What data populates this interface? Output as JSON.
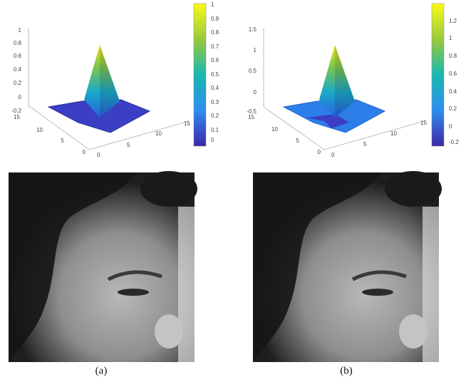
{
  "figure": {
    "panels": [
      {
        "z_ticks": [
          1,
          0.8,
          0.6,
          0.4,
          0.2,
          0,
          -0.2
        ],
        "y_ticks": [
          15,
          10,
          5,
          0
        ],
        "x_ticks": [
          0,
          5,
          10,
          15
        ],
        "colorbar_ticks": [
          1,
          0.9,
          0.8,
          0.7,
          0.6,
          0.5,
          0.4,
          0.3,
          0.2,
          0.1,
          0
        ],
        "caption": "(a)"
      },
      {
        "z_ticks": [
          1.5,
          1,
          0.5,
          0,
          -0.5
        ],
        "y_ticks": [
          15,
          10,
          5,
          0
        ],
        "x_ticks": [
          0,
          5,
          10,
          15
        ],
        "colorbar_ticks": [
          1.2,
          1,
          0.8,
          0.6,
          0.4,
          0.2,
          0,
          -0.2
        ],
        "caption": "(b)"
      }
    ]
  }
}
